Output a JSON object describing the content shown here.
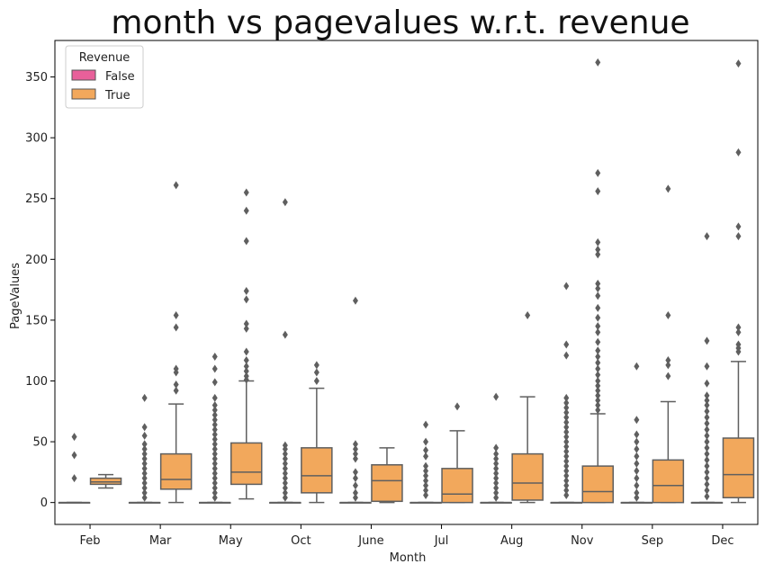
{
  "chart_data": {
    "type": "box",
    "title": "month vs pagevalues w.r.t. revenue",
    "xlabel": "Month",
    "ylabel": "PageValues",
    "ylim": [
      -18,
      380
    ],
    "yticks": [
      0,
      50,
      100,
      150,
      200,
      250,
      300,
      350
    ],
    "categories": [
      "Feb",
      "Mar",
      "May",
      "Oct",
      "June",
      "Jul",
      "Aug",
      "Nov",
      "Sep",
      "Dec"
    ],
    "legend": {
      "title": "Revenue",
      "position": "top-left",
      "entries": [
        {
          "label": "False",
          "color": "#e8609a"
        },
        {
          "label": "True",
          "color": "#f2a85c"
        }
      ]
    },
    "series": [
      {
        "name": "False",
        "color": "#e8609a",
        "boxes": [
          {
            "category": "Feb",
            "whislo": 0,
            "q1": 0,
            "med": 0,
            "q3": 0,
            "whishi": 0,
            "fliers": [
              54,
              39,
              20
            ]
          },
          {
            "category": "Mar",
            "whislo": 0,
            "q1": 0,
            "med": 0,
            "q3": 0,
            "whishi": 0,
            "fliers": [
              86,
              62,
              55,
              48,
              44,
              40,
              36,
              32,
              28,
              24,
              20,
              16,
              12,
              8,
              4
            ]
          },
          {
            "category": "May",
            "whislo": 0,
            "q1": 0,
            "med": 0,
            "q3": 0,
            "whishi": 0,
            "fliers": [
              120,
              110,
              99,
              86,
              80,
              76,
              72,
              68,
              64,
              60,
              56,
              52,
              48,
              44,
              40,
              36,
              32,
              28,
              24,
              20,
              16,
              12,
              8,
              4
            ]
          },
          {
            "category": "Oct",
            "whislo": 0,
            "q1": 0,
            "med": 0,
            "q3": 0,
            "whishi": 0,
            "fliers": [
              247,
              138,
              47,
              44,
              40,
              36,
              32,
              28,
              24,
              20,
              16,
              12,
              8,
              4
            ]
          },
          {
            "category": "June",
            "whislo": 0,
            "q1": 0,
            "med": 0,
            "q3": 0,
            "whishi": 0,
            "fliers": [
              166,
              48,
              44,
              40,
              36,
              25,
              20,
              14,
              8,
              4
            ]
          },
          {
            "category": "Jul",
            "whislo": 0,
            "q1": 0,
            "med": 0,
            "q3": 0,
            "whishi": 0,
            "fliers": [
              64,
              50,
              43,
              38,
              30,
              26,
              22,
              18,
              14,
              10,
              6
            ]
          },
          {
            "category": "Aug",
            "whislo": 0,
            "q1": 0,
            "med": 0,
            "q3": 0,
            "whishi": 0,
            "fliers": [
              87,
              45,
              40,
              36,
              32,
              28,
              24,
              20,
              16,
              12,
              8,
              4
            ]
          },
          {
            "category": "Nov",
            "whislo": 0,
            "q1": 0,
            "med": 0,
            "q3": 0,
            "whishi": 0,
            "fliers": [
              178,
              130,
              121,
              86,
              82,
              78,
              74,
              70,
              66,
              62,
              58,
              54,
              50,
              46,
              42,
              38,
              34,
              30,
              26,
              22,
              18,
              14,
              10,
              6
            ]
          },
          {
            "category": "Sep",
            "whislo": 0,
            "q1": 0,
            "med": 0,
            "q3": 0,
            "whishi": 0,
            "fliers": [
              112,
              68,
              56,
              50,
              44,
              38,
              32,
              26,
              20,
              14,
              8,
              4
            ]
          },
          {
            "category": "Dec",
            "whislo": 0,
            "q1": 0,
            "med": 0,
            "q3": 0,
            "whishi": 0,
            "fliers": [
              219,
              133,
              112,
              98,
              88,
              84,
              80,
              75,
              70,
              65,
              60,
              55,
              50,
              45,
              40,
              35,
              30,
              25,
              20,
              15,
              10,
              5
            ]
          }
        ]
      },
      {
        "name": "True",
        "color": "#f2a85c",
        "boxes": [
          {
            "category": "Feb",
            "whislo": 12,
            "q1": 15,
            "med": 17,
            "q3": 20,
            "whishi": 23,
            "fliers": []
          },
          {
            "category": "Mar",
            "whislo": 0,
            "q1": 11,
            "med": 19,
            "q3": 40,
            "whishi": 81,
            "fliers": [
              261,
              154,
              144,
              110,
              107,
              97,
              92
            ]
          },
          {
            "category": "May",
            "whislo": 3,
            "q1": 15,
            "med": 25,
            "q3": 49,
            "whishi": 100,
            "fliers": [
              255,
              240,
              215,
              174,
              167,
              147,
              143,
              124,
              117,
              112,
              108,
              104,
              101
            ]
          },
          {
            "category": "Oct",
            "whislo": 0,
            "q1": 8,
            "med": 22,
            "q3": 45,
            "whishi": 94,
            "fliers": [
              113,
              107,
              100
            ]
          },
          {
            "category": "June",
            "whislo": 0,
            "q1": 1,
            "med": 18,
            "q3": 31,
            "whishi": 45,
            "fliers": []
          },
          {
            "category": "Jul",
            "whislo": 0,
            "q1": 0,
            "med": 7,
            "q3": 28,
            "whishi": 59,
            "fliers": [
              79
            ]
          },
          {
            "category": "Aug",
            "whislo": 0,
            "q1": 2,
            "med": 16,
            "q3": 40,
            "whishi": 87,
            "fliers": [
              154
            ]
          },
          {
            "category": "Nov",
            "whislo": 0,
            "q1": 0,
            "med": 9,
            "q3": 30,
            "whishi": 73,
            "fliers": [
              362,
              271,
              256,
              214,
              208,
              204,
              180,
              176,
              170,
              160,
              152,
              145,
              140,
              132,
              125,
              120,
              115,
              110,
              105,
              100,
              96,
              92,
              88,
              84,
              80,
              76
            ]
          },
          {
            "category": "Sep",
            "whislo": 0,
            "q1": 0,
            "med": 14,
            "q3": 35,
            "whishi": 83,
            "fliers": [
              258,
              154,
              117,
              113,
              104
            ]
          },
          {
            "category": "Dec",
            "whislo": 0,
            "q1": 4,
            "med": 23,
            "q3": 53,
            "whishi": 116,
            "fliers": [
              361,
              288,
              227,
              219,
              144,
              140,
              130,
              127,
              124
            ]
          }
        ]
      }
    ]
  }
}
